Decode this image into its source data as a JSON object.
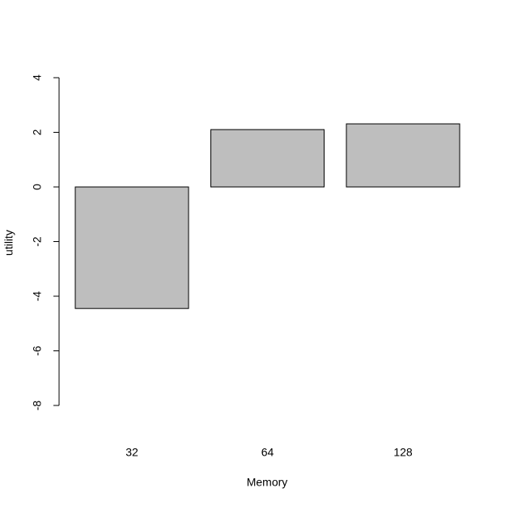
{
  "chart_data": {
    "type": "bar",
    "x_label": "Memory",
    "y_label": "utility",
    "categories": [
      "32",
      "64",
      "128"
    ],
    "values": [
      -4.45,
      2.1,
      2.31
    ],
    "color": "#bebebe",
    "ylim": [
      -8,
      4
    ],
    "yticks": [
      -8,
      -6,
      -4,
      -2,
      0,
      2,
      4
    ],
    "grid": false
  }
}
